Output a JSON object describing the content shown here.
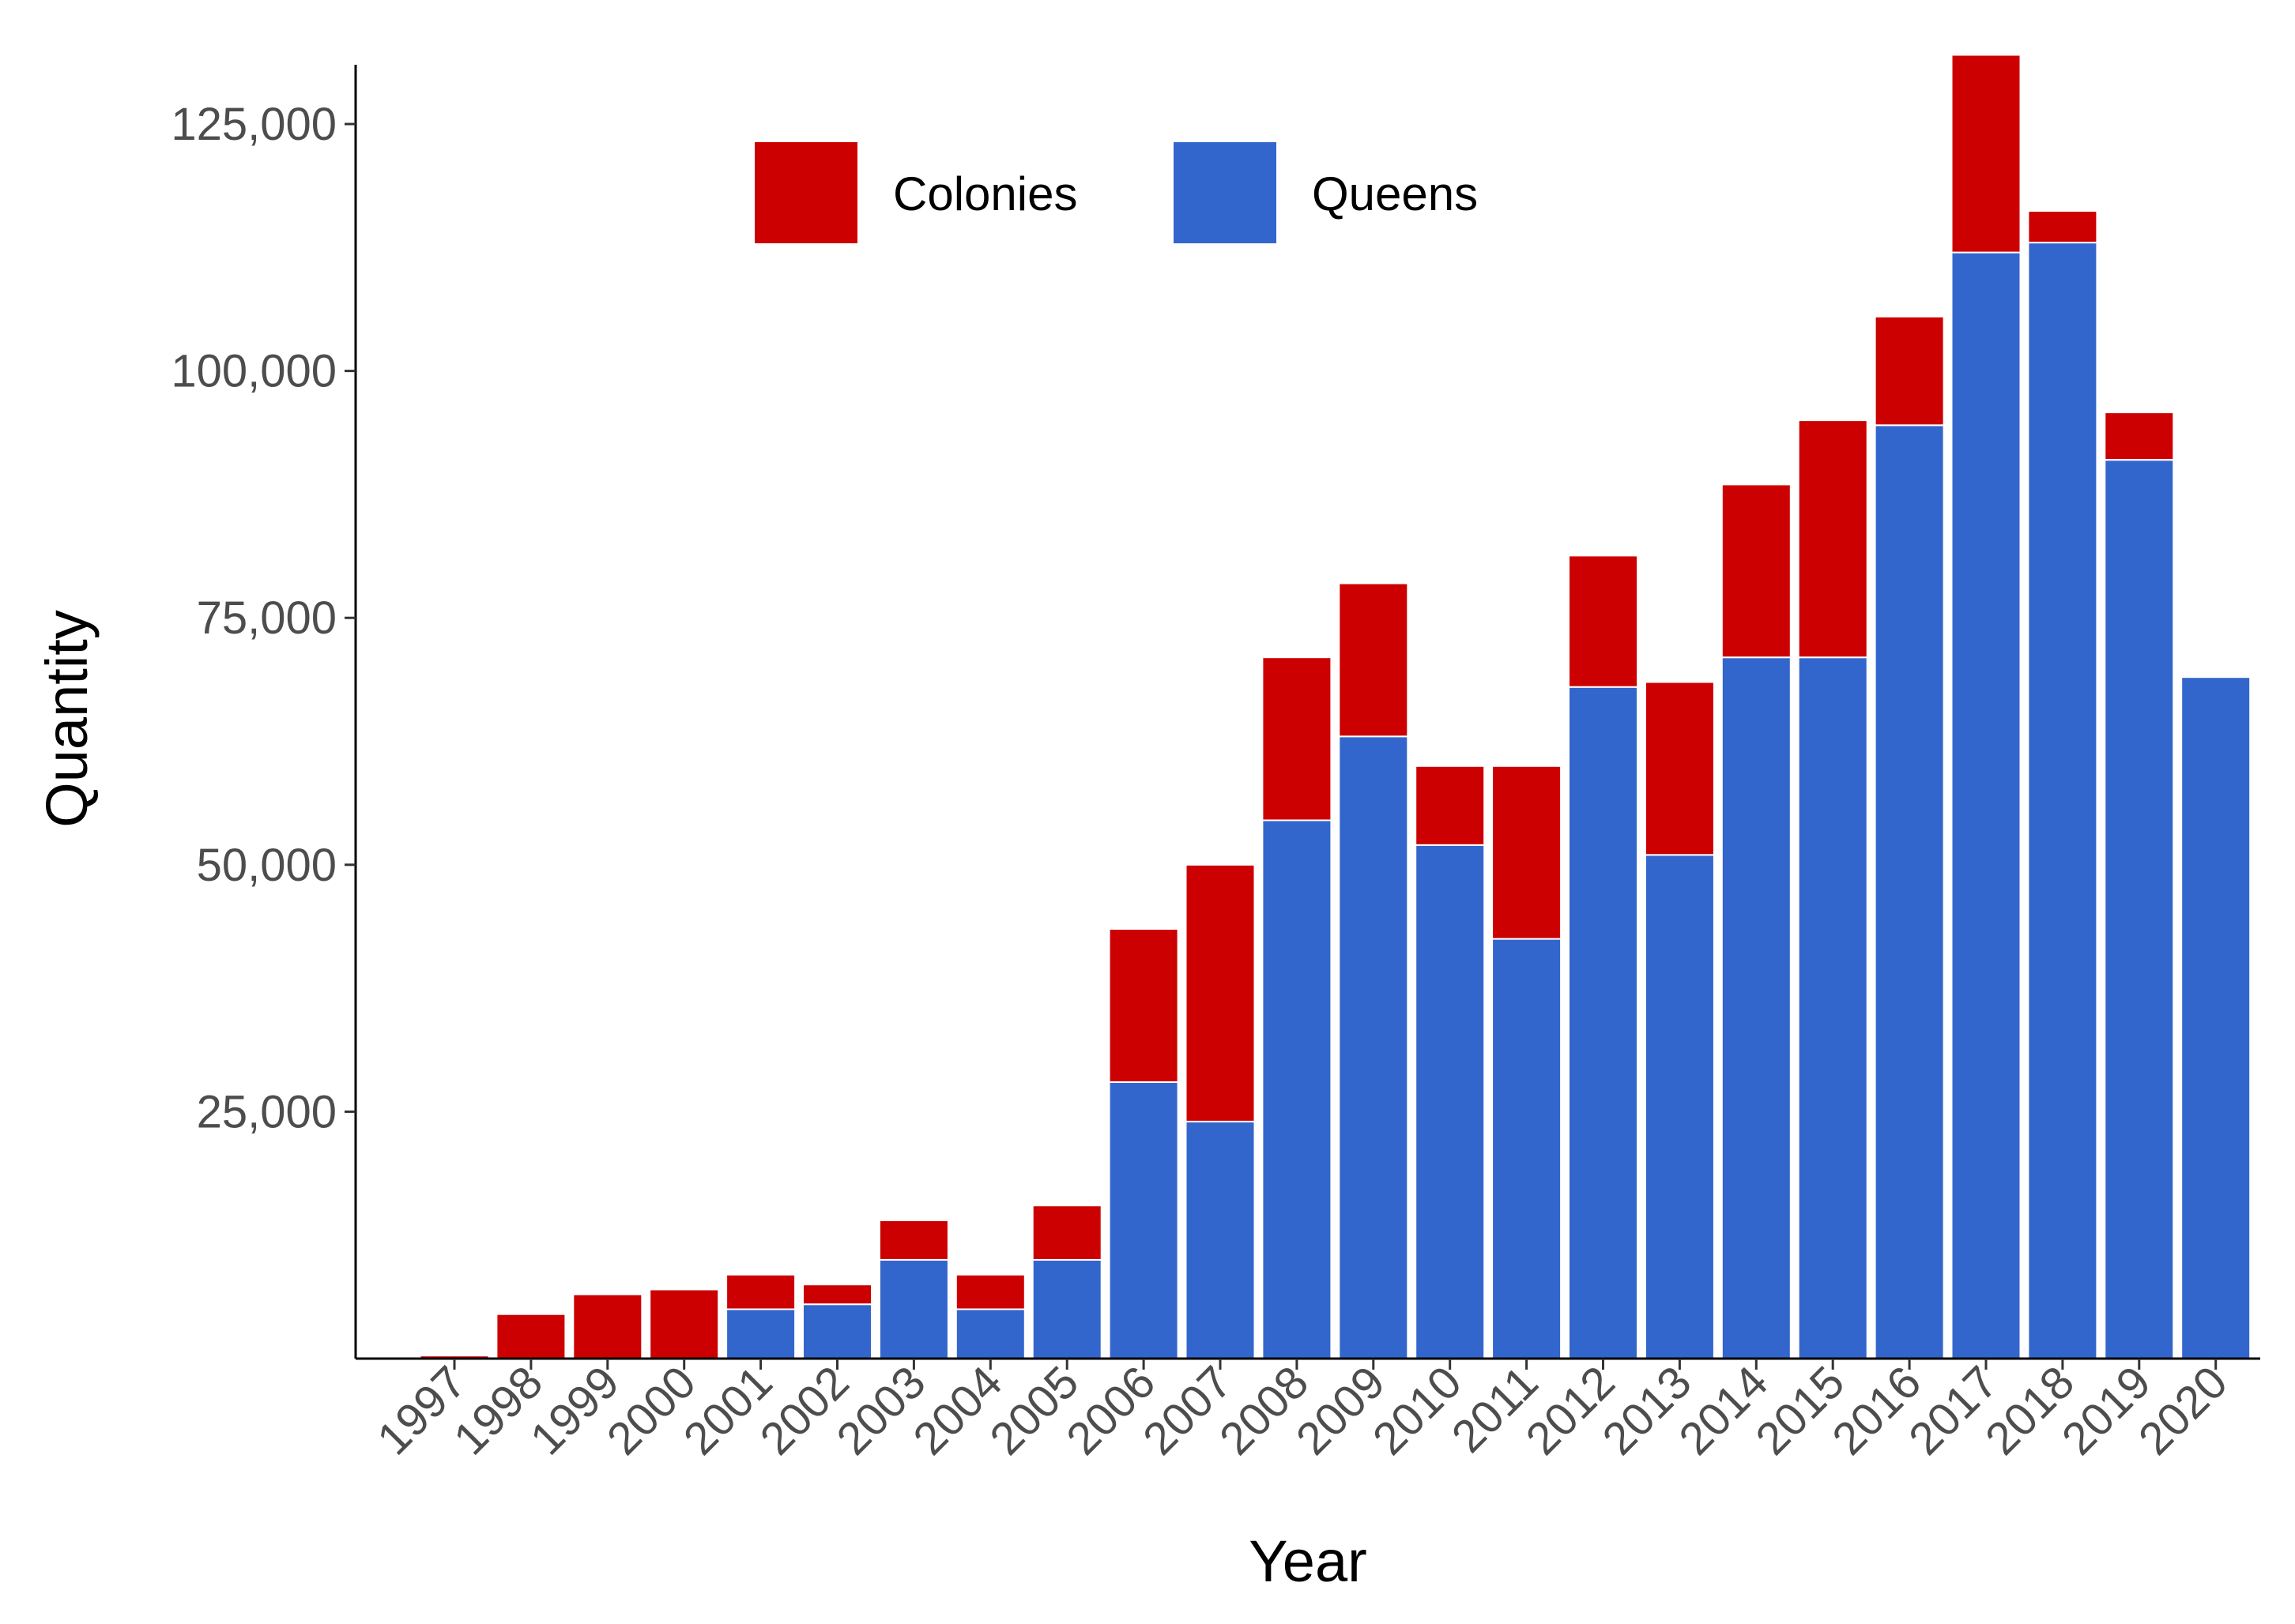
{
  "chart_data": {
    "type": "bar",
    "stacked": true,
    "title": "",
    "xlabel": "Year",
    "ylabel": "Quantity",
    "ylim": [
      0,
      131000
    ],
    "yticks": [
      25000,
      50000,
      75000,
      100000,
      125000
    ],
    "ytick_labels": [
      "25,000",
      "50,000",
      "75,000",
      "100,000",
      "125,000"
    ],
    "grid": false,
    "legend_position": "top-center",
    "categories": [
      "1997",
      "1998",
      "1999",
      "2000",
      "2001",
      "2002",
      "2003",
      "2004",
      "2005",
      "2006",
      "2007",
      "2008",
      "2009",
      "2010",
      "2011",
      "2012",
      "2013",
      "2014",
      "2015",
      "2016",
      "2017",
      "2018",
      "2019",
      "2020"
    ],
    "series": [
      {
        "name": "Queens",
        "color": "#3366CC",
        "values": [
          0,
          0,
          0,
          0,
          5000,
          5500,
          10000,
          5000,
          10000,
          28000,
          24000,
          54500,
          63000,
          52000,
          42500,
          68000,
          51000,
          71000,
          71000,
          94500,
          112000,
          113000,
          91000,
          69000
        ]
      },
      {
        "name": "Colonies",
        "color": "#CC0000",
        "values": [
          300,
          4500,
          6500,
          7000,
          3500,
          2000,
          4000,
          3500,
          5500,
          15500,
          26000,
          16500,
          15500,
          8000,
          17500,
          13300,
          17500,
          17500,
          24000,
          11000,
          20000,
          3200,
          4800,
          0
        ]
      }
    ],
    "legend": [
      {
        "label": "Colonies",
        "color": "#CC0000"
      },
      {
        "label": "Queens",
        "color": "#3366CC"
      }
    ]
  }
}
